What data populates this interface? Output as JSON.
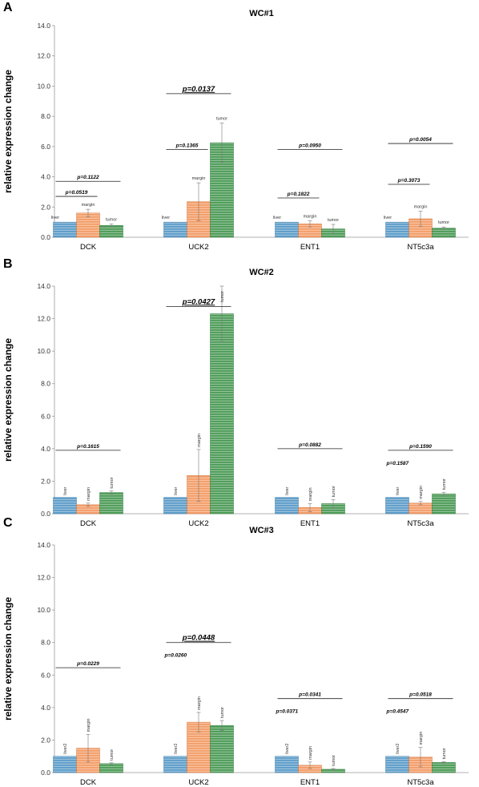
{
  "colors": {
    "liver": "#5b9bc8",
    "margin": "#f39c66",
    "tumor": "#4a9a55"
  },
  "chart_data": [
    {
      "type": "bar",
      "panel": "A",
      "title": "WC#1",
      "ylabel": "relative expression change",
      "ylim": [
        0,
        14
      ],
      "yticks": [
        "0.0",
        "2.0",
        "4.0",
        "6.0",
        "8.0",
        "10.0",
        "12.0",
        "14.0"
      ],
      "categories": [
        "DCK",
        "UCK2",
        "ENT1",
        "NT5c3a"
      ],
      "bar_label_rotated": false,
      "series": [
        {
          "key": "liver",
          "values": [
            1.0,
            1.0,
            1.0,
            1.0
          ],
          "errors": [
            0.0,
            0.0,
            0.0,
            0.0
          ],
          "labels": [
            "liver",
            "liver",
            "liver",
            "liver"
          ]
        },
        {
          "key": "margin",
          "values": [
            1.6,
            2.35,
            0.88,
            1.22
          ],
          "errors": [
            0.25,
            1.25,
            0.2,
            0.5
          ],
          "labels": [
            "margin",
            "margin",
            "margin",
            "margin"
          ]
        },
        {
          "key": "tumor",
          "values": [
            0.78,
            6.25,
            0.55,
            0.6
          ],
          "errors": [
            0.1,
            1.3,
            0.3,
            0.08
          ],
          "labels": [
            "tumor",
            "tumor",
            "tumor",
            "tumor"
          ]
        }
      ],
      "pvalues": [
        {
          "text": "p=0.0519",
          "group": 0,
          "from": 0,
          "to": 1,
          "y": 2.7,
          "big": false
        },
        {
          "text": "p=0.1122",
          "group": 0,
          "from": 0,
          "to": 2,
          "y": 3.7,
          "big": false
        },
        {
          "text": "p=0.1365",
          "group": 1,
          "from": 0,
          "to": 1,
          "y": 5.8,
          "big": false
        },
        {
          "text": "p=0.0137",
          "group": 1,
          "from": 0,
          "to": 2,
          "y": 9.5,
          "big": true
        },
        {
          "text": "p=0.1822",
          "group": 2,
          "from": 0,
          "to": 1,
          "y": 2.6,
          "big": false
        },
        {
          "text": "p=0.0950",
          "group": 2,
          "from": 0,
          "to": 2,
          "y": 5.8,
          "big": false
        },
        {
          "text": "p=0.3073",
          "group": 3,
          "from": 0,
          "to": 1,
          "y": 3.5,
          "big": false
        },
        {
          "text": "p=0.0054",
          "group": 3,
          "from": 0,
          "to": 2,
          "y": 6.2,
          "big": false
        }
      ]
    },
    {
      "type": "bar",
      "panel": "B",
      "title": "WC#2",
      "ylabel": "relative expression change",
      "ylim": [
        0,
        14
      ],
      "yticks": [
        "0.0",
        "2.0",
        "4.0",
        "6.0",
        "8.0",
        "10.0",
        "12.0",
        "14.0"
      ],
      "categories": [
        "DCK",
        "UCK2",
        "ENT1",
        "NT5c3a"
      ],
      "bar_label_rotated": true,
      "series": [
        {
          "key": "liver",
          "values": [
            1.0,
            1.0,
            1.0,
            1.0
          ],
          "errors": [
            0.0,
            0.0,
            0.0,
            0.0
          ],
          "labels": [
            "liver",
            "liver",
            "liver",
            "liver"
          ]
        },
        {
          "key": "margin",
          "values": [
            0.55,
            2.35,
            0.38,
            0.65
          ],
          "errors": [
            0.1,
            1.6,
            0.25,
            0.1
          ],
          "labels": [
            "margin",
            "margin",
            "margin",
            "margin"
          ]
        },
        {
          "key": "tumor",
          "values": [
            1.3,
            12.3,
            0.62,
            1.22
          ],
          "errors": [
            0.1,
            1.7,
            0.25,
            0.1
          ],
          "labels": [
            "tumor",
            "tumor",
            "tumor",
            "tumor"
          ]
        }
      ],
      "pvalues": [
        {
          "text": "p=0.1615",
          "group": 0,
          "from": 0,
          "to": 2,
          "y": 3.9,
          "big": false
        },
        {
          "text": "p=0.0427",
          "group": 1,
          "from": 0,
          "to": 2,
          "y": 12.75,
          "big": true
        },
        {
          "text": "p=0.0882",
          "group": 2,
          "from": 0,
          "to": 2,
          "y": 4.0,
          "big": false
        },
        {
          "text": "p=0.1587",
          "group": 3,
          "from": 0,
          "to": 1,
          "y": null,
          "big": false
        },
        {
          "text": "p=0.1590",
          "group": 3,
          "from": 0,
          "to": 2,
          "y": 3.9,
          "big": false
        }
      ]
    },
    {
      "type": "bar",
      "panel": "C",
      "title": "WC#3",
      "ylabel": "relative expression change",
      "ylim": [
        0,
        14
      ],
      "yticks": [
        "0.0",
        "2.0",
        "4.0",
        "6.0",
        "8.0",
        "10.0",
        "12.0",
        "14.0"
      ],
      "categories": [
        "DCK",
        "UCK2",
        "ENT1",
        "NT5c3a"
      ],
      "bar_label_rotated": true,
      "series": [
        {
          "key": "liver",
          "values": [
            1.0,
            1.0,
            1.0,
            1.0
          ],
          "errors": [
            0.0,
            0.0,
            0.0,
            0.0
          ],
          "labels": [
            "liver2",
            "liver2",
            "liver2",
            "liver2"
          ]
        },
        {
          "key": "margin",
          "values": [
            1.5,
            3.1,
            0.45,
            0.95
          ],
          "errors": [
            0.85,
            0.6,
            0.2,
            0.6
          ],
          "labels": [
            "margin",
            "margin",
            "margin",
            "margin"
          ]
        },
        {
          "key": "tumor",
          "values": [
            0.55,
            2.9,
            0.2,
            0.62
          ],
          "errors": [
            0.05,
            0.3,
            0.05,
            0.05
          ],
          "labels": [
            "tumor",
            "tumor",
            "tumor",
            "tumor"
          ]
        }
      ],
      "pvalues": [
        {
          "text": "p=0.0229",
          "group": 0,
          "from": 0,
          "to": 2,
          "y": 6.45,
          "big": false
        },
        {
          "text": "p=0.0448",
          "group": 1,
          "from": 0,
          "to": 2,
          "y": 8.0,
          "big": true
        },
        {
          "text": "p=0.0260",
          "group": 1,
          "from": 0,
          "to": 1,
          "y": null,
          "big": false
        },
        {
          "text": "p=0.0341",
          "group": 2,
          "from": 0,
          "to": 2,
          "y": 4.55,
          "big": false
        },
        {
          "text": "p=0.0371",
          "group": 2,
          "from": 0,
          "to": 1,
          "y": null,
          "big": false
        },
        {
          "text": "p=0.0518",
          "group": 3,
          "from": 0,
          "to": 2,
          "y": 4.55,
          "big": false
        },
        {
          "text": "p=0.4547",
          "group": 3,
          "from": 0,
          "to": 1,
          "y": null,
          "big": false
        }
      ]
    }
  ]
}
